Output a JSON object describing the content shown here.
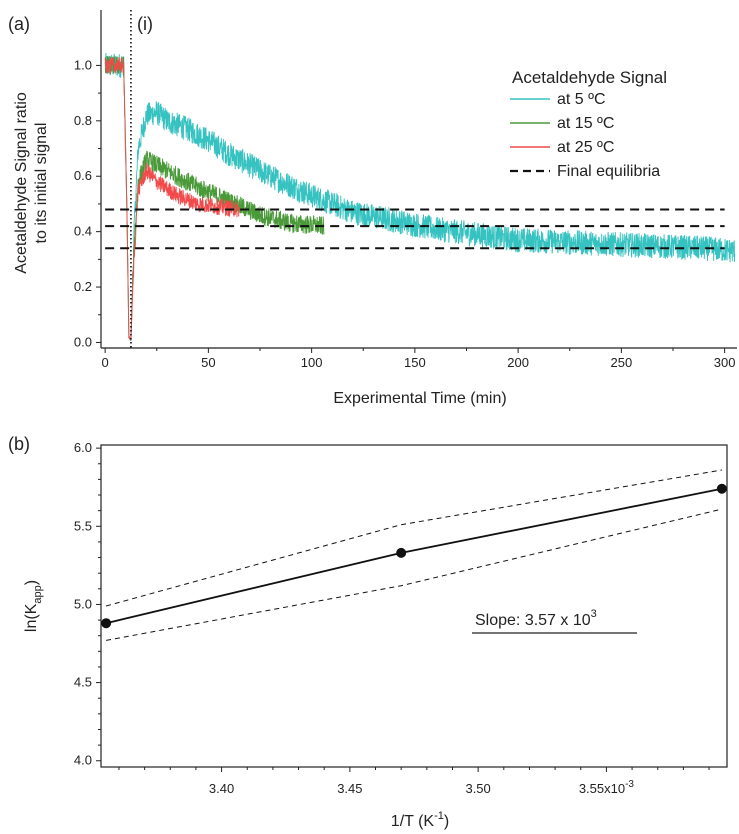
{
  "chart_data": [
    {
      "type": "line",
      "panel_label": "(a)",
      "annotation": "(i)",
      "annotation_x": 12.5,
      "xlabel": "Experimental Time (min)",
      "ylabel_line1": "Acetaldehyde Signal ratio",
      "ylabel_line2": "to its initial signal",
      "xlim": [
        -2,
        306
      ],
      "ylim": [
        -0.02,
        1.2
      ],
      "xticks": [
        0,
        50,
        100,
        150,
        200,
        250,
        300
      ],
      "yticks": [
        0.0,
        0.2,
        0.4,
        0.6,
        0.8,
        1.0
      ],
      "ytick_labels": [
        "0.0",
        "0.2",
        "0.4",
        "0.6",
        "0.8",
        "1.0"
      ],
      "legend_title": "Acetaldehyde Signal",
      "legend_position": "top-right",
      "series": [
        {
          "name": "at 5 ºC",
          "color": "#35c2c0",
          "noise": 0.045,
          "x": [
            0,
            3,
            6,
            9,
            10.5,
            11.5,
            12.5,
            14,
            16,
            20,
            25,
            30,
            40,
            50,
            60,
            80,
            100,
            120,
            140,
            160,
            180,
            200,
            230,
            260,
            290,
            305
          ],
          "y": [
            1.0,
            1.0,
            1.0,
            1.0,
            0.5,
            0.02,
            0.01,
            0.4,
            0.7,
            0.82,
            0.83,
            0.8,
            0.77,
            0.73,
            0.68,
            0.6,
            0.53,
            0.47,
            0.44,
            0.41,
            0.39,
            0.37,
            0.36,
            0.35,
            0.34,
            0.33
          ]
        },
        {
          "name": "at 15 ºC",
          "color": "#4a9a3a",
          "noise": 0.035,
          "x": [
            0,
            3,
            6,
            9,
            10.5,
            11.5,
            12.5,
            14,
            16,
            20,
            25,
            35,
            45,
            60,
            75,
            90,
            106
          ],
          "y": [
            1.0,
            1.0,
            1.0,
            1.0,
            0.5,
            0.02,
            0.01,
            0.35,
            0.58,
            0.66,
            0.64,
            0.6,
            0.56,
            0.51,
            0.46,
            0.43,
            0.42
          ]
        },
        {
          "name": "at 25 ºC",
          "color": "#f24a4a",
          "noise": 0.03,
          "x": [
            0,
            3,
            6,
            9,
            10.5,
            11.5,
            12.5,
            14,
            16,
            20,
            25,
            35,
            45,
            55,
            65
          ],
          "y": [
            1.0,
            1.0,
            1.0,
            1.0,
            0.5,
            0.02,
            0.01,
            0.3,
            0.55,
            0.62,
            0.58,
            0.53,
            0.5,
            0.49,
            0.48
          ]
        }
      ],
      "equilibria": {
        "name": "Final equilibria",
        "y": [
          0.48,
          0.42,
          0.34
        ],
        "x_range": [
          0,
          300
        ]
      }
    },
    {
      "type": "line",
      "panel_label": "(b)",
      "xlabel": "1/T (K⁻¹)",
      "xlabel_main": "1/T (K",
      "xlabel_sup": "-1",
      "xlabel_close": ")",
      "ylabel_main": "ln(K",
      "ylabel_sub": "app",
      "ylabel_close": ")",
      "xlim": [
        3.353,
        3.597
      ],
      "ylim": [
        3.96,
        6.02
      ],
      "xticks": [
        3.4,
        3.45,
        3.5,
        3.55
      ],
      "xtick_labels": [
        "3.40",
        "3.45",
        "3.50",
        "3.55x10"
      ],
      "xtick_exp": "-3",
      "yticks": [
        4.0,
        4.5,
        5.0,
        5.5,
        6.0
      ],
      "ytick_labels": [
        "4.0",
        "4.5",
        "5.0",
        "5.5",
        "6.0"
      ],
      "annotation_main": "Slope: 3.57 x 10",
      "annotation_sup": "3",
      "series": [
        {
          "name": "fit",
          "x": [
            3.355,
            3.47,
            3.595
          ],
          "y": [
            4.88,
            5.33,
            5.74
          ]
        }
      ],
      "confidence_upper": {
        "x": [
          3.355,
          3.47,
          3.595
        ],
        "y": [
          4.99,
          5.51,
          5.86
        ]
      },
      "confidence_lower": {
        "x": [
          3.355,
          3.47,
          3.595
        ],
        "y": [
          4.77,
          5.12,
          5.61
        ]
      }
    }
  ]
}
